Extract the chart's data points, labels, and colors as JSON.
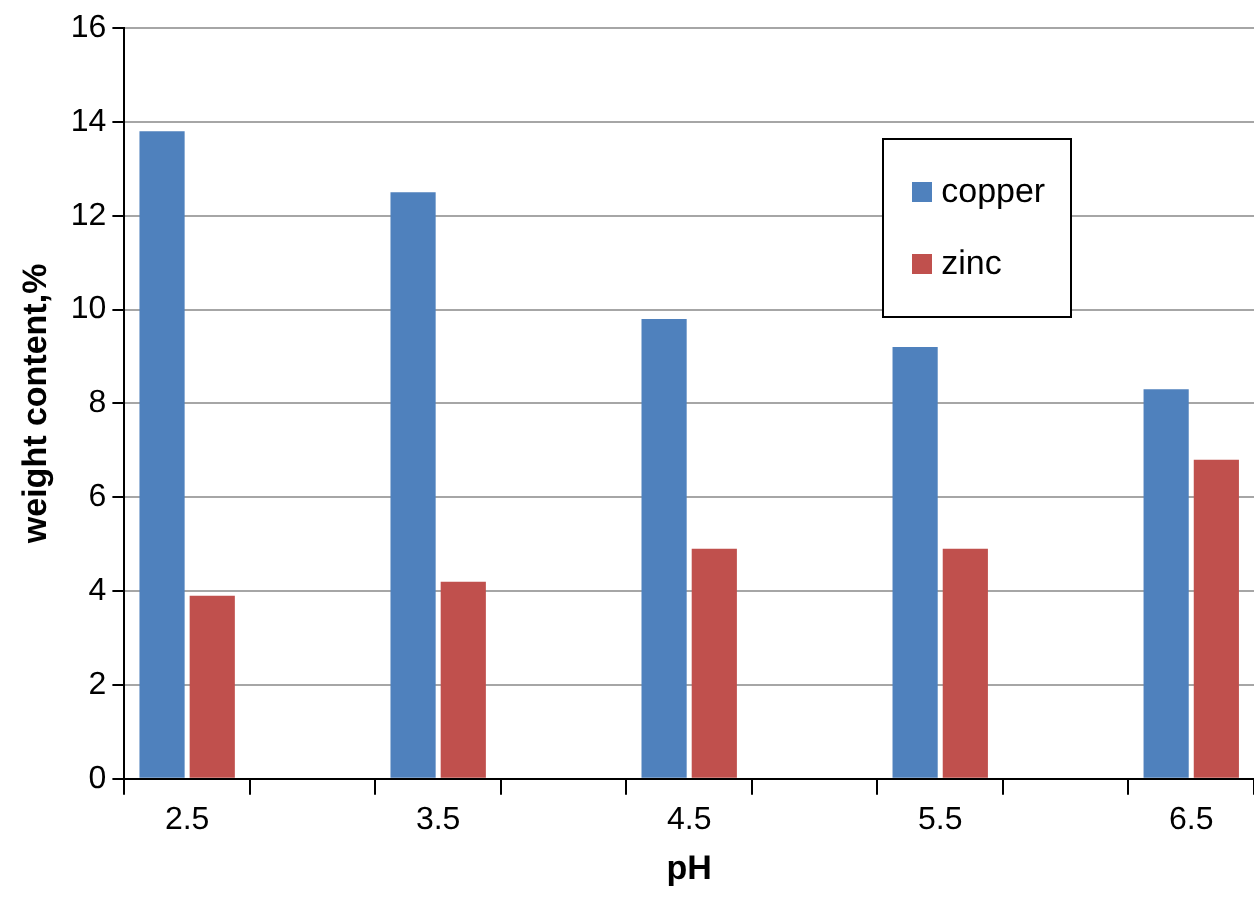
{
  "chart_data": {
    "type": "bar",
    "xlabel": "pH",
    "ylabel": "weight content,%",
    "categories": [
      "2.5",
      null,
      "3.5",
      null,
      "4.5",
      null,
      "5.5",
      null,
      "6.5"
    ],
    "series": [
      {
        "name": "copper",
        "color": "#4f81bd",
        "values": [
          13.8,
          null,
          12.5,
          null,
          9.8,
          null,
          9.2,
          null,
          8.3
        ]
      },
      {
        "name": "zinc",
        "color": "#c0504d",
        "values": [
          3.9,
          null,
          4.2,
          null,
          4.9,
          null,
          4.9,
          null,
          6.8
        ]
      }
    ],
    "ylim": [
      0,
      16
    ],
    "yticks": [
      0,
      2,
      4,
      6,
      8,
      10,
      12,
      14,
      16
    ],
    "grid": "y",
    "legend": "top right"
  }
}
